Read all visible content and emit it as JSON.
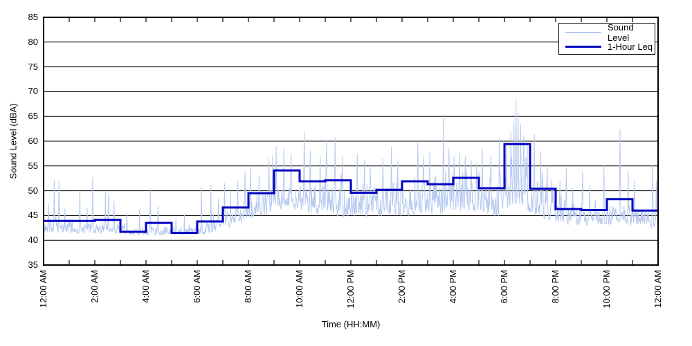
{
  "chart_data": {
    "type": "line",
    "title": "",
    "xlabel": "Time (HH:MM)",
    "ylabel": "Sound Level (dBA)",
    "ylim": [
      35,
      85
    ],
    "ytick_step": 5,
    "ytick_labels": [
      "35",
      "40",
      "45",
      "50",
      "55",
      "60",
      "65",
      "70",
      "75",
      "80",
      "85"
    ],
    "x_total_minutes": 1440,
    "xtick_minor_minutes": 60,
    "xtick_labels": [
      [
        0,
        "12:00 AM"
      ],
      [
        120,
        "2:00 AM"
      ],
      [
        240,
        "4:00 AM"
      ],
      [
        360,
        "6:00 AM"
      ],
      [
        480,
        "8:00 AM"
      ],
      [
        600,
        "10:00 AM"
      ],
      [
        720,
        "12:00 PM"
      ],
      [
        840,
        "2:00 PM"
      ],
      [
        960,
        "4:00 PM"
      ],
      [
        1080,
        "6:00 PM"
      ],
      [
        1200,
        "8:00 PM"
      ],
      [
        1320,
        "10:00 PM"
      ],
      [
        1440,
        "12:00 AM"
      ]
    ],
    "grid": "horizontal-black",
    "legend_position": "top-right",
    "series": [
      {
        "name": "Sound Level",
        "color": "#b6c9f0",
        "style": "noisy-line",
        "sampling": "per-minute",
        "seed": 42,
        "hourly_noise_band": [
          {
            "lo": 41.3,
            "hi": 44.3
          },
          {
            "lo": 41.3,
            "hi": 43.6
          },
          {
            "lo": 41.3,
            "hi": 43.6
          },
          {
            "lo": 41.0,
            "hi": 42.6
          },
          {
            "lo": 41.0,
            "hi": 42.8
          },
          {
            "lo": 40.9,
            "hi": 42.4
          },
          {
            "lo": 41.3,
            "hi": 44.2
          },
          {
            "lo": 43.0,
            "hi": 47.2
          },
          {
            "lo": 44.5,
            "hi": 50.0
          },
          {
            "lo": 46.5,
            "hi": 53.0
          },
          {
            "lo": 45.0,
            "hi": 52.0
          },
          {
            "lo": 44.5,
            "hi": 52.0
          },
          {
            "lo": 44.5,
            "hi": 51.0
          },
          {
            "lo": 44.5,
            "hi": 51.0
          },
          {
            "lo": 45.0,
            "hi": 52.5
          },
          {
            "lo": 45.0,
            "hi": 52.0
          },
          {
            "lo": 46.0,
            "hi": 53.5
          },
          {
            "lo": 44.0,
            "hi": 51.5
          },
          {
            "lo": 46.5,
            "hi": 56.5
          },
          {
            "lo": 44.0,
            "hi": 52.0
          },
          {
            "lo": 43.0,
            "hi": 48.0
          },
          {
            "lo": 42.8,
            "hi": 47.0
          },
          {
            "lo": 43.0,
            "hi": 48.5
          },
          {
            "lo": 42.5,
            "hi": 47.0
          }
        ],
        "spikes": [
          [
            12,
            47.3
          ],
          [
            25,
            52.1
          ],
          [
            36,
            51.9
          ],
          [
            50,
            46.5
          ],
          [
            85,
            50.3
          ],
          [
            102,
            46.5
          ],
          [
            115,
            52.7
          ],
          [
            145,
            49.8
          ],
          [
            152,
            49.5
          ],
          [
            165,
            48.0
          ],
          [
            195,
            45.5
          ],
          [
            225,
            46.3
          ],
          [
            250,
            50.4
          ],
          [
            268,
            47.0
          ],
          [
            310,
            44.5
          ],
          [
            330,
            45.2
          ],
          [
            370,
            50.8
          ],
          [
            392,
            51.2
          ],
          [
            410,
            48.5
          ],
          [
            424,
            51.5
          ],
          [
            438,
            50.0
          ],
          [
            455,
            52.0
          ],
          [
            472,
            54.0
          ],
          [
            485,
            54.7
          ],
          [
            505,
            53.2
          ],
          [
            528,
            56.5
          ],
          [
            537,
            57.2
          ],
          [
            545,
            59.0
          ],
          [
            563,
            58.5
          ],
          [
            580,
            57.5
          ],
          [
            611,
            62.0
          ],
          [
            625,
            58.0
          ],
          [
            648,
            57.0
          ],
          [
            663,
            60.3
          ],
          [
            683,
            60.7
          ],
          [
            700,
            57.0
          ],
          [
            735,
            57.5
          ],
          [
            752,
            56.2
          ],
          [
            765,
            55.0
          ],
          [
            795,
            56.5
          ],
          [
            815,
            58.9
          ],
          [
            830,
            56.0
          ],
          [
            877,
            59.8
          ],
          [
            890,
            57.0
          ],
          [
            905,
            58.0
          ],
          [
            937,
            65.4
          ],
          [
            950,
            58.5
          ],
          [
            962,
            57.0
          ],
          [
            975,
            57.5
          ],
          [
            988,
            57.0
          ],
          [
            1002,
            56.2
          ],
          [
            1015,
            55.5
          ],
          [
            1028,
            58.5
          ],
          [
            1048,
            57.2
          ],
          [
            1068,
            60.6
          ],
          [
            1085,
            60.0
          ],
          [
            1095,
            62.0
          ],
          [
            1102,
            64.0
          ],
          [
            1107,
            68.5
          ],
          [
            1112,
            66.0
          ],
          [
            1118,
            63.5
          ],
          [
            1125,
            61.2
          ],
          [
            1133,
            60.0
          ],
          [
            1150,
            61.5
          ],
          [
            1165,
            58.0
          ],
          [
            1180,
            55.0
          ],
          [
            1210,
            52.0
          ],
          [
            1225,
            54.5
          ],
          [
            1240,
            50.5
          ],
          [
            1263,
            53.8
          ],
          [
            1280,
            51.2
          ],
          [
            1313,
            55.0
          ],
          [
            1351,
            62.4
          ],
          [
            1370,
            54.0
          ],
          [
            1385,
            52.2
          ],
          [
            1427,
            55.2
          ],
          [
            1436,
            52.0
          ]
        ]
      },
      {
        "name": "1-Hour Leq",
        "color": "#0000c0",
        "style": "step-hourly",
        "hourly_leq_dba": [
          43.9,
          43.9,
          44.1,
          41.7,
          43.5,
          41.5,
          43.8,
          46.6,
          49.5,
          54.1,
          51.9,
          52.1,
          49.6,
          50.2,
          51.9,
          51.3,
          52.6,
          50.5,
          59.4,
          50.4,
          46.3,
          46.1,
          48.3,
          46.0
        ]
      }
    ],
    "frame_color": "#000000",
    "gridline_color": "#000000"
  }
}
